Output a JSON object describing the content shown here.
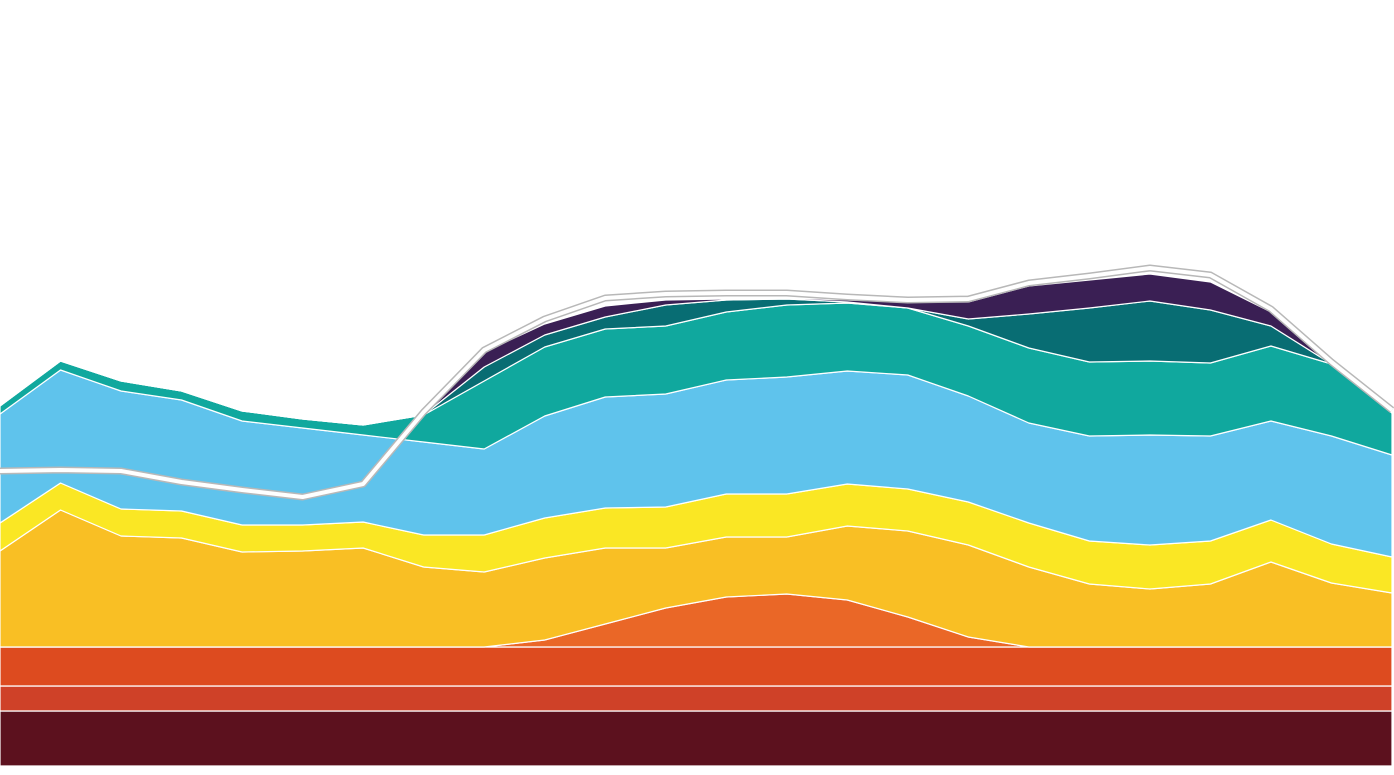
{
  "chart_data": {
    "type": "stacked_area",
    "categories": [
      null,
      null,
      null,
      null,
      null,
      null,
      null,
      null,
      null,
      null,
      null,
      null,
      null,
      null,
      null,
      null,
      null,
      null,
      null,
      null,
      null,
      null,
      null,
      null
    ],
    "ylim": [
      0,
      766
    ],
    "series": [
      {
        "color": "#5c111e",
        "values": [
          55,
          55,
          55,
          55,
          55,
          55,
          55,
          55,
          55,
          55,
          55,
          55,
          55,
          55,
          55,
          55,
          55,
          55,
          55,
          55,
          55,
          55,
          55,
          55
        ]
      },
      {
        "color": "#cf4128",
        "values": [
          25,
          25,
          25,
          25,
          25,
          25,
          25,
          25,
          25,
          25,
          25,
          25,
          25,
          25,
          25,
          25,
          25,
          25,
          25,
          25,
          25,
          25,
          25,
          25
        ]
      },
      {
        "color": "#dd4b1f",
        "values": [
          39,
          39,
          39,
          39,
          39,
          39,
          39,
          39,
          39,
          39,
          39,
          39,
          39,
          39,
          39,
          39,
          39,
          39,
          39,
          39,
          39,
          39,
          39,
          39
        ]
      },
      {
        "color": "#ea6727",
        "values": [
          0,
          0,
          0,
          0,
          0,
          0,
          0,
          0,
          0,
          7,
          23,
          39,
          50,
          53,
          47,
          30,
          10,
          0,
          0,
          0,
          0,
          0,
          0,
          0
        ]
      },
      {
        "color": "#f9bf24",
        "values": [
          96,
          137,
          111,
          109,
          95,
          96,
          99,
          80,
          75,
          82,
          76,
          60,
          60,
          57,
          74,
          86,
          92,
          80,
          63,
          58,
          63,
          85,
          64,
          54
        ]
      },
      {
        "color": "#fae724",
        "values": [
          28,
          27,
          27,
          27,
          27,
          26,
          26,
          32,
          37,
          40,
          40,
          41,
          43,
          43,
          42,
          42,
          43,
          44,
          43,
          44,
          43,
          42,
          39,
          36
        ]
      },
      {
        "color": "#5fc3ec",
        "values": [
          109,
          113,
          118,
          111,
          104,
          97,
          87,
          93,
          86,
          102,
          111,
          113,
          114,
          117,
          113,
          114,
          106,
          100,
          105,
          110,
          105,
          99,
          108,
          102
        ]
      },
      {
        "color": "#10a89e",
        "values": [
          8,
          9,
          10,
          9,
          10,
          9,
          10,
          27,
          68,
          69,
          68,
          68,
          68,
          72,
          68,
          67,
          70,
          75,
          74,
          74,
          73,
          75,
          72,
          42
        ]
      },
      {
        "color": "#086d73",
        "values": [
          0,
          0,
          0,
          0,
          0,
          0,
          0,
          0,
          14,
          12,
          12,
          21,
          12,
          6,
          1,
          0,
          7,
          34,
          54,
          60,
          53,
          20,
          0,
          0
        ]
      },
      {
        "color": "#3a1f54",
        "values": [
          0,
          0,
          0,
          0,
          0,
          0,
          0,
          0,
          15,
          11,
          11,
          5,
          1,
          1,
          2,
          6,
          17,
          28,
          28,
          27,
          28,
          14,
          0,
          0
        ]
      }
    ],
    "line": {
      "color": "#ffffff",
      "values": [
        295,
        296,
        295,
        284,
        276,
        269,
        282,
        354,
        416,
        447,
        468,
        472,
        473,
        473,
        469,
        466,
        467,
        483,
        490,
        498,
        491,
        457,
        404,
        356
      ]
    }
  }
}
